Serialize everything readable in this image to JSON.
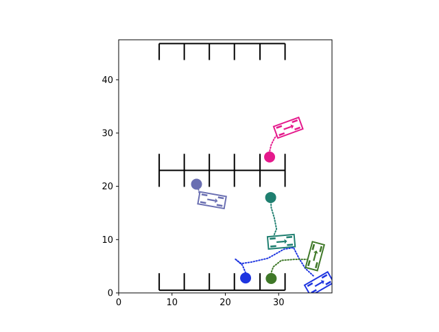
{
  "chart_data": {
    "type": "scatter",
    "title": "",
    "xlabel": "",
    "ylabel": "",
    "xlim": [
      0,
      40
    ],
    "ylim": [
      0,
      47.5
    ],
    "xticks": [
      0,
      10,
      20,
      30
    ],
    "yticks": [
      0,
      10,
      20,
      30,
      40
    ],
    "grid": false,
    "parking_rows": [
      {
        "y_base": 0.5,
        "y_top": 3.7,
        "stalls_x": [
          7.6,
          12.3,
          17.0,
          21.7,
          26.5,
          31.2
        ],
        "side": "up"
      },
      {
        "y_center": 23.0,
        "half": 3.1,
        "stalls_x": [
          7.6,
          12.3,
          17.0,
          21.7,
          26.5,
          31.2
        ],
        "side": "both"
      },
      {
        "y_base": 46.8,
        "y_top": 43.7,
        "stalls_x": [
          7.6,
          12.3,
          17.0,
          21.7,
          26.5,
          31.2
        ],
        "side": "down"
      }
    ],
    "agents": [
      {
        "color": "#E5198C",
        "goal": [
          28.3,
          25.5
        ],
        "vehicle": {
          "x": 31.8,
          "y": 31.0,
          "angle": 20
        },
        "path": [
          [
            30.0,
            30.0
          ],
          [
            29.2,
            29.0
          ],
          [
            28.6,
            27.8
          ],
          [
            28.3,
            26.5
          ],
          [
            28.3,
            25.5
          ]
        ]
      },
      {
        "color": "#6A6FB2",
        "goal": [
          14.6,
          20.4
        ],
        "vehicle": {
          "x": 17.5,
          "y": 17.4,
          "angle": -10
        },
        "path": [
          [
            15.2,
            18.3
          ],
          [
            15.0,
            19.3
          ],
          [
            14.6,
            20.4
          ]
        ]
      },
      {
        "color": "#1F7F70",
        "goal": [
          28.5,
          17.9
        ],
        "vehicle": {
          "x": 30.5,
          "y": 9.6,
          "angle": 5
        },
        "path": [
          [
            28.8,
            10.0
          ],
          [
            29.6,
            12.0
          ],
          [
            29.2,
            14.0
          ],
          [
            28.6,
            16.0
          ],
          [
            28.5,
            17.9
          ]
        ]
      },
      {
        "color": "#1E35E0",
        "goal": [
          23.8,
          2.8
        ],
        "vehicle": {
          "x": 37.6,
          "y": 1.7,
          "angle": 30
        },
        "path": [
          [
            36.5,
            3.2
          ],
          [
            35.0,
            4.6
          ],
          [
            33.8,
            6.5
          ],
          [
            32.8,
            8.5
          ],
          [
            31.0,
            8.2
          ],
          [
            28.0,
            6.5
          ],
          [
            25.0,
            5.8
          ],
          [
            23.0,
            5.5
          ],
          [
            21.8,
            6.4
          ],
          [
            23.2,
            5.2
          ],
          [
            23.8,
            3.8
          ],
          [
            23.8,
            2.8
          ]
        ]
      },
      {
        "color": "#3F7828",
        "goal": [
          28.6,
          2.7
        ],
        "vehicle": {
          "x": 36.8,
          "y": 6.9,
          "angle": 75
        },
        "path": [
          [
            36.0,
            6.3
          ],
          [
            33.0,
            6.3
          ],
          [
            30.5,
            6.1
          ],
          [
            29.0,
            4.9
          ],
          [
            28.6,
            3.8
          ],
          [
            28.6,
            2.7
          ]
        ]
      }
    ]
  }
}
